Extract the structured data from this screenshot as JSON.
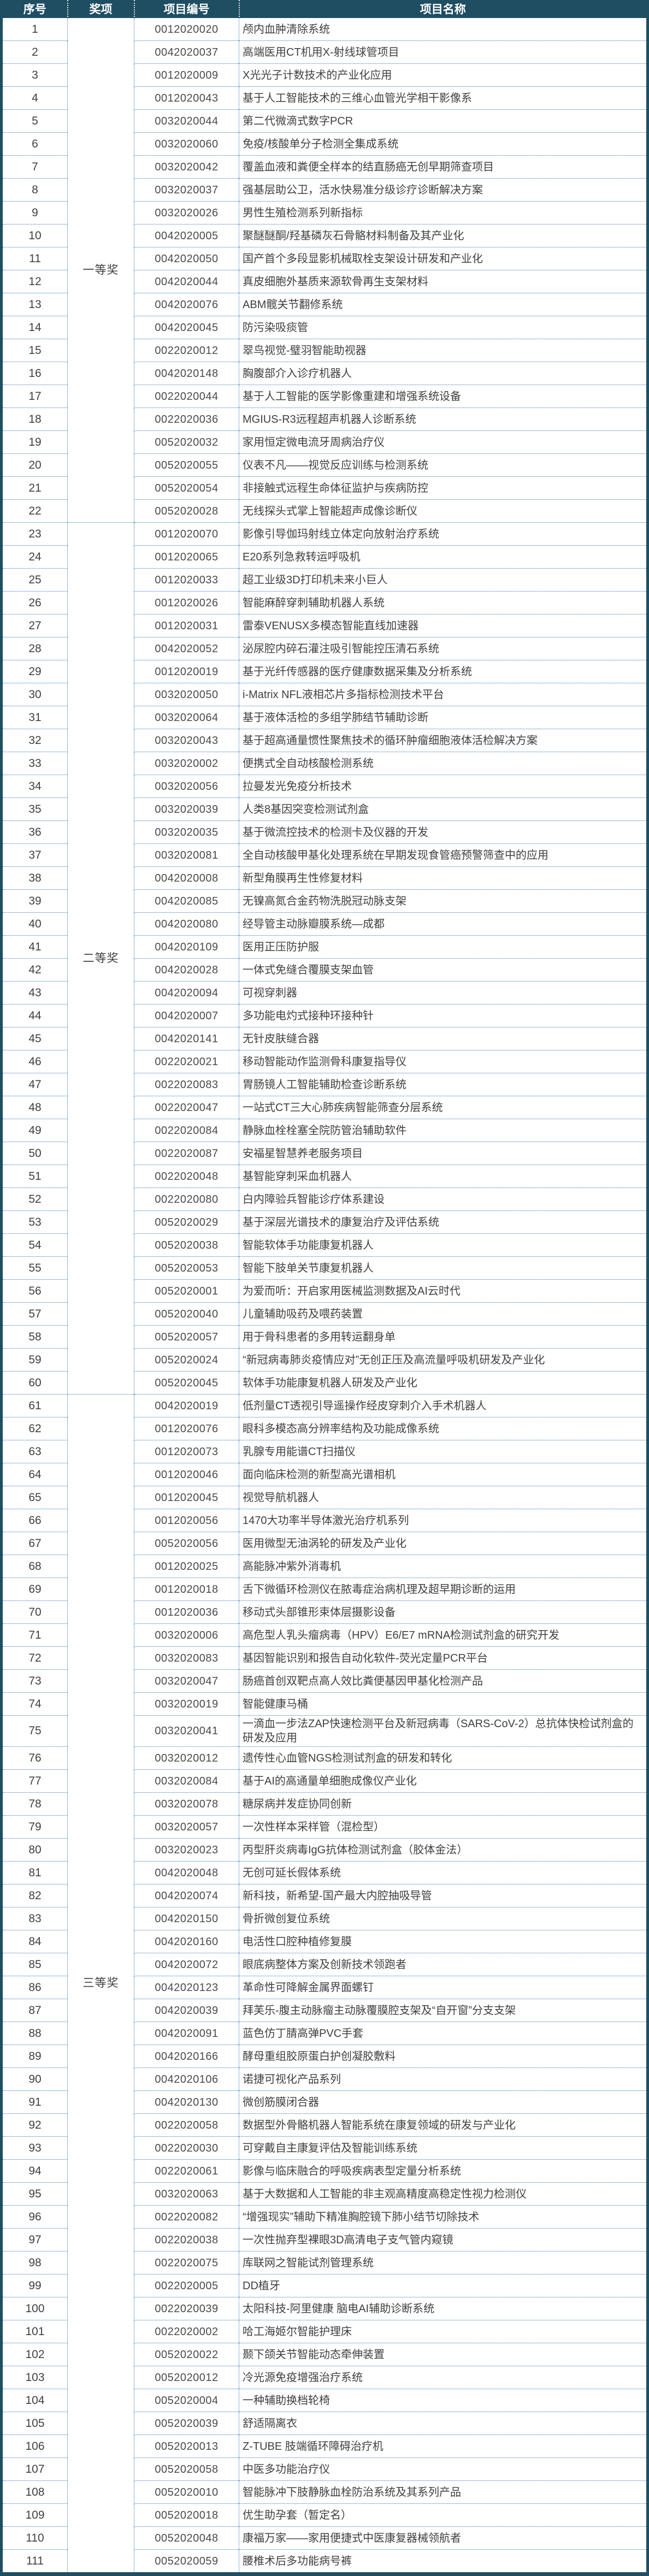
{
  "colors": {
    "header_bg": "#1F4E63",
    "header_text": "#FFFFFF",
    "outer_border": "#1F4E63",
    "dotted_border": "#2E74B5",
    "body_text": "#3F3F3F"
  },
  "table": {
    "columns": [
      "序号",
      "奖项",
      "项目编号",
      "项目名称"
    ],
    "groups": [
      {
        "award": "一等奖",
        "rows": [
          {
            "no": "1",
            "code": "0012020020",
            "name": "颅内血肿清除系统"
          },
          {
            "no": "2",
            "code": "0042020037",
            "name": "高端医用CT机用X-射线球管项目"
          },
          {
            "no": "3",
            "code": "0012020009",
            "name": "X光光子计数技术的产业化应用"
          },
          {
            "no": "4",
            "code": "0012020043",
            "name": "基于人工智能技术的三维心血管光学相干影像系"
          },
          {
            "no": "5",
            "code": "0032020044",
            "name": "第二代微滴式数字PCR"
          },
          {
            "no": "6",
            "code": "0032020060",
            "name": "免疫/核酸单分子检测全集成系统"
          },
          {
            "no": "7",
            "code": "0032020042",
            "name": "覆盖血液和粪便全样本的结直肠癌无创早期筛查项目"
          },
          {
            "no": "8",
            "code": "0032020037",
            "name": "强基层助公卫，活水快易准分级诊疗诊断解决方案"
          },
          {
            "no": "9",
            "code": "0032020026",
            "name": "男性生殖检测系列新指标"
          },
          {
            "no": "10",
            "code": "0042020005",
            "name": "聚醚醚酮/羟基磷灰石骨骼材料制备及其产业化"
          },
          {
            "no": "11",
            "code": "0042020050",
            "name": "国产首个多段显影机械取栓支架设计研发和产业化"
          },
          {
            "no": "12",
            "code": "0042020044",
            "name": "真皮细胞外基质来源软骨再生支架材料"
          },
          {
            "no": "13",
            "code": "0042020076",
            "name": "ABM髋关节翻修系统"
          },
          {
            "no": "14",
            "code": "0042020045",
            "name": "防污染吸痰管"
          },
          {
            "no": "15",
            "code": "0022020012",
            "name": "翠鸟视觉-璧羽智能助视器"
          },
          {
            "no": "16",
            "code": "0042020148",
            "name": "胸腹部介入诊疗机器人"
          },
          {
            "no": "17",
            "code": "0022020044",
            "name": "基于人工智能的医学影像重建和增强系统设备"
          },
          {
            "no": "18",
            "code": "0022020036",
            "name": "MGIUS-R3远程超声机器人诊断系统"
          },
          {
            "no": "19",
            "code": "0052020032",
            "name": "家用恒定微电流牙周病治疗仪"
          },
          {
            "no": "20",
            "code": "0052020055",
            "name": "仪表不凡——视觉反应训练与检测系统"
          },
          {
            "no": "21",
            "code": "0052020054",
            "name": "非接触式远程生命体征监护与疾病防控"
          },
          {
            "no": "22",
            "code": "0052020028",
            "name": "无线探头式掌上智能超声成像诊断仪"
          }
        ]
      },
      {
        "award": "二等奖",
        "rows": [
          {
            "no": "23",
            "code": "0012020070",
            "name": "影像引导伽玛射线立体定向放射治疗系统"
          },
          {
            "no": "24",
            "code": "0012020065",
            "name": "E20系列急救转运呼吸机"
          },
          {
            "no": "25",
            "code": "0012020033",
            "name": "超工业级3D打印机未来小巨人"
          },
          {
            "no": "26",
            "code": "0012020026",
            "name": "智能麻醉穿刺辅助机器人系统"
          },
          {
            "no": "27",
            "code": "0012020031",
            "name": "雷泰VENUSX多模态智能直线加速器"
          },
          {
            "no": "28",
            "code": "0042020052",
            "name": "泌尿腔内碎石灌注吸引智能控压清石系统"
          },
          {
            "no": "29",
            "code": "0012020019",
            "name": "基于光纤传感器的医疗健康数据采集及分析系统"
          },
          {
            "no": "30",
            "code": "0032020050",
            "name": "i-Matrix NFL液相芯片多指标检测技术平台"
          },
          {
            "no": "31",
            "code": "0032020064",
            "name": "基于液体活检的多组学肺结节辅助诊断"
          },
          {
            "no": "32",
            "code": "0032020043",
            "name": "基于超高通量惯性聚焦技术的循环肿瘤细胞液体活检解决方案"
          },
          {
            "no": "33",
            "code": "0032020002",
            "name": "便携式全自动核酸检测系统"
          },
          {
            "no": "34",
            "code": "0032020056",
            "name": "拉曼发光免疫分析技术"
          },
          {
            "no": "35",
            "code": "0032020039",
            "name": "人类8基因突变检测试剂盒"
          },
          {
            "no": "36",
            "code": "0032020035",
            "name": "基于微流控技术的检测卡及仪器的开发"
          },
          {
            "no": "37",
            "code": "0032020081",
            "name": "全自动核酸甲基化处理系统在早期发现食管癌预警筛查中的应用"
          },
          {
            "no": "38",
            "code": "0042020008",
            "name": "新型角膜再生性修复材料"
          },
          {
            "no": "39",
            "code": "0042020085",
            "name": "无镍高氮合金药物洗脱冠动脉支架"
          },
          {
            "no": "40",
            "code": "0042020080",
            "name": "经导管主动脉瓣膜系统—成都"
          },
          {
            "no": "41",
            "code": "0042020109",
            "name": "医用正压防护服"
          },
          {
            "no": "42",
            "code": "0042020028",
            "name": "一体式免缝合覆膜支架血管"
          },
          {
            "no": "43",
            "code": "0042020094",
            "name": "可视穿刺器"
          },
          {
            "no": "44",
            "code": "0042020007",
            "name": "多功能电灼式接种环接种针"
          },
          {
            "no": "45",
            "code": "0042020141",
            "name": "无针皮肤缝合器"
          },
          {
            "no": "46",
            "code": "0022020021",
            "name": "移动智能动作监测骨科康复指导仪"
          },
          {
            "no": "47",
            "code": "0022020083",
            "name": "胃肠镜人工智能辅助检查诊断系统"
          },
          {
            "no": "48",
            "code": "0022020047",
            "name": "一站式CT三大心肺疾病智能筛查分层系统"
          },
          {
            "no": "49",
            "code": "0022020084",
            "name": "静脉血栓栓塞全院防管治辅助软件"
          },
          {
            "no": "50",
            "code": "0022020087",
            "name": "安福星智慧养老服务项目"
          },
          {
            "no": "51",
            "code": "0022020048",
            "name": "基智能穿刺采血机器人"
          },
          {
            "no": "52",
            "code": "0022020080",
            "name": "白内障验兵智能诊疗体系建设"
          },
          {
            "no": "53",
            "code": "0052020029",
            "name": "基于深层光谱技术的康复治疗及评估系统"
          },
          {
            "no": "54",
            "code": "0052020038",
            "name": "智能软体手功能康复机器人"
          },
          {
            "no": "55",
            "code": "0052020053",
            "name": "智能下肢单关节康复机器人"
          },
          {
            "no": "56",
            "code": "0052020001",
            "name": "为爱而听：开启家用医械监测数据及AI云时代"
          },
          {
            "no": "57",
            "code": "0052020040",
            "name": "儿童辅助吸药及喂药装置"
          },
          {
            "no": "58",
            "code": "0052020057",
            "name": "用于骨科患者的多用转运翻身单"
          },
          {
            "no": "59",
            "code": "0052020024",
            "name": "“新冠病毒肺炎疫情应对”无创正压及高流量呼吸机研发及产业化"
          },
          {
            "no": "60",
            "code": "0052020045",
            "name": "软体手功能康复机器人研发及产业化"
          }
        ]
      },
      {
        "award": "三等奖",
        "rows": [
          {
            "no": "61",
            "code": "0042020019",
            "name": "低剂量CT透视引导遥操作经皮穿刺介入手术机器人"
          },
          {
            "no": "62",
            "code": "0012020076",
            "name": "眼科多模态高分辨率结构及功能成像系统"
          },
          {
            "no": "63",
            "code": "0012020073",
            "name": "乳腺专用能谱CT扫描仪"
          },
          {
            "no": "64",
            "code": "0012020046",
            "name": "面向临床检测的新型高光谱相机"
          },
          {
            "no": "65",
            "code": "0012020045",
            "name": "视觉导航机器人"
          },
          {
            "no": "66",
            "code": "0012020056",
            "name": "1470大功率半导体激光治疗机系列"
          },
          {
            "no": "67",
            "code": "0052020056",
            "name": "医用微型无油涡轮的研发及产业化"
          },
          {
            "no": "68",
            "code": "0012020025",
            "name": "高能脉冲紫外消毒机"
          },
          {
            "no": "69",
            "code": "0012020018",
            "name": "舌下微循环检测仪在脓毒症治病机理及超早期诊断的运用"
          },
          {
            "no": "70",
            "code": "0012020036",
            "name": "移动式头部锥形束体层摄影设备"
          },
          {
            "no": "71",
            "code": "0032020006",
            "name": "高危型人乳头瘤病毒（HPV）E6/E7 mRNA检测试剂盒的研究开发"
          },
          {
            "no": "72",
            "code": "0032020083",
            "name": "基因智能识别和报告自动化软件-荧光定量PCR平台"
          },
          {
            "no": "73",
            "code": "0032020047",
            "name": "肠癌首创双靶点高人效比粪便基因甲基化检测产品"
          },
          {
            "no": "74",
            "code": "0032020019",
            "name": "智能健康马桶"
          },
          {
            "no": "75",
            "code": "0032020041",
            "name": "一滴血一步法ZAP快速检测平台及新冠病毒（SARS-CoV-2）总抗体快检试剂盒的研发及应用"
          },
          {
            "no": "76",
            "code": "0032020012",
            "name": "遗传性心血管NGS检测试剂盒的研发和转化"
          },
          {
            "no": "77",
            "code": "0032020084",
            "name": "基于AI的高通量单细胞成像仪产业化"
          },
          {
            "no": "78",
            "code": "0032020078",
            "name": "糖尿病并发症协同创新"
          },
          {
            "no": "79",
            "code": "0032020057",
            "name": "一次性样本采样管（混检型）"
          },
          {
            "no": "80",
            "code": "0032020023",
            "name": "丙型肝炎病毒IgG抗体检测试剂盒（胶体金法）"
          },
          {
            "no": "81",
            "code": "0042020048",
            "name": "无创可延长假体系统"
          },
          {
            "no": "82",
            "code": "0042020074",
            "name": "新科技，新希望-国产最大内腔抽吸导管"
          },
          {
            "no": "83",
            "code": "0042020150",
            "name": "骨折微创复位系统"
          },
          {
            "no": "84",
            "code": "0042020160",
            "name": "电活性口腔种植修复膜"
          },
          {
            "no": "85",
            "code": "0042020072",
            "name": "眼底病整体方案及创新技术领跑者"
          },
          {
            "no": "86",
            "code": "0042020123",
            "name": "革命性可降解金属界面螺钉"
          },
          {
            "no": "87",
            "code": "0042020039",
            "name": "拜芙乐-腹主动脉瘤主动脉覆膜腔支架及“自开窗”分支支架"
          },
          {
            "no": "88",
            "code": "0042020091",
            "name": "蓝色仿丁腈高弹PVC手套"
          },
          {
            "no": "89",
            "code": "0042020166",
            "name": "酵母重组胶原蛋白护创凝胶敷料"
          },
          {
            "no": "90",
            "code": "0042020106",
            "name": "诺捷可视化产品系列"
          },
          {
            "no": "91",
            "code": "0042020130",
            "name": "微创筋膜闭合器"
          },
          {
            "no": "92",
            "code": "0022020058",
            "name": "数据型外骨骼机器人智能系统在康复领域的研发与产业化"
          },
          {
            "no": "93",
            "code": "0022020030",
            "name": "可穿戴自主康复评估及智能训练系统"
          },
          {
            "no": "94",
            "code": "0022020061",
            "name": "影像与临床融合的呼吸疾病表型定量分析系统"
          },
          {
            "no": "95",
            "code": "0032020063",
            "name": "基于大数据和人工智能的非主观高精度高稳定性视力检测仪"
          },
          {
            "no": "96",
            "code": "0022020082",
            "name": "“增强现实”辅助下精准胸腔镜下肺小结节切除技术"
          },
          {
            "no": "97",
            "code": "0022020038",
            "name": "一次性抛弃型裸眼3D高清电子支气管内窥镜"
          },
          {
            "no": "98",
            "code": "0022020075",
            "name": "库联网之智能试剂管理系统"
          },
          {
            "no": "99",
            "code": "0022020005",
            "name": "DD植牙"
          },
          {
            "no": "100",
            "code": "0022020039",
            "name": "太阳科技-阿里健康 脑电AI辅助诊断系统"
          },
          {
            "no": "101",
            "code": "0022020002",
            "name": "哈工海姬尔智能护理床"
          },
          {
            "no": "102",
            "code": "0052020022",
            "name": "颞下颌关节智能动态牵伸装置"
          },
          {
            "no": "103",
            "code": "0052020012",
            "name": "冷光源免疫增强治疗系统"
          },
          {
            "no": "104",
            "code": "0052020004",
            "name": "一种辅助换档轮椅"
          },
          {
            "no": "105",
            "code": "0052020039",
            "name": "舒适隔离衣"
          },
          {
            "no": "106",
            "code": "0052020013",
            "name": "Z-TUBE 肢端循环障碍治疗机"
          },
          {
            "no": "107",
            "code": "0052020058",
            "name": "中医多功能治疗仪"
          },
          {
            "no": "108",
            "code": "0052020010",
            "name": "智能脉冲下肢静脉血栓防治系统及其系列产品"
          },
          {
            "no": "109",
            "code": "0052020018",
            "name": "优生助孕套（暂定名）"
          },
          {
            "no": "110",
            "code": "0052020048",
            "name": "康福万家——家用便捷式中医康复器械领航者"
          },
          {
            "no": "111",
            "code": "0052020059",
            "name": "腰椎术后多功能病号裤"
          }
        ]
      }
    ]
  }
}
